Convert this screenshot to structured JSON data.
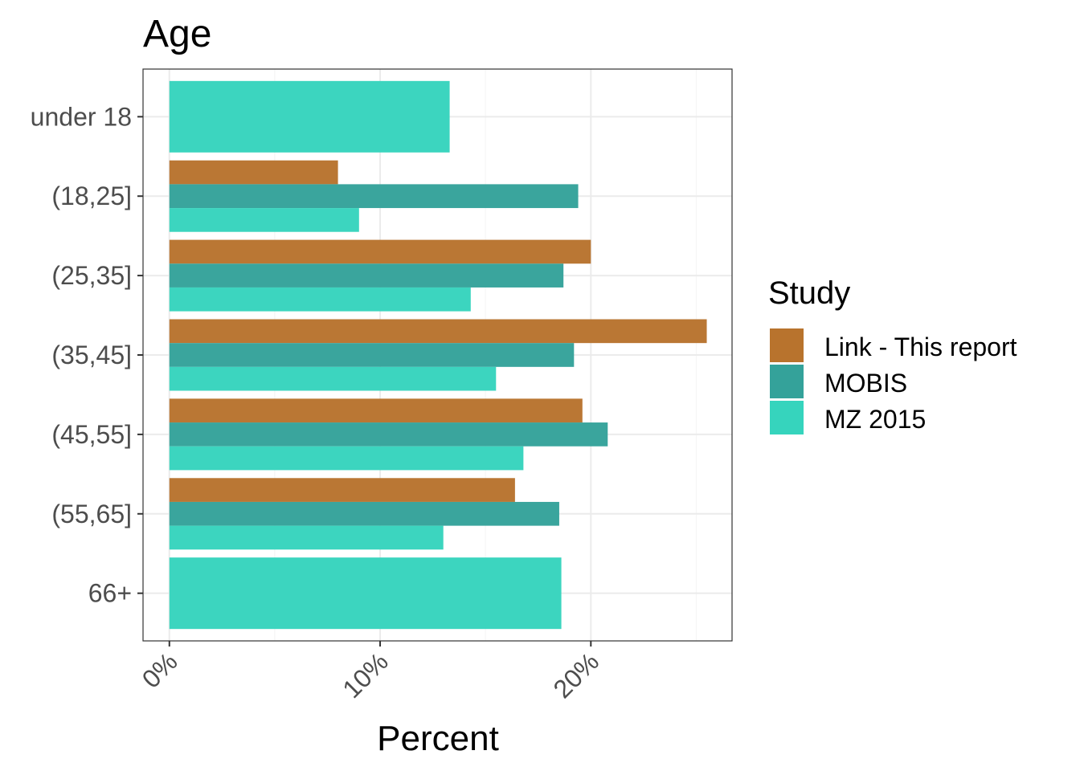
{
  "chart_data": {
    "type": "bar",
    "orientation": "horizontal",
    "title": "Age",
    "xlabel": "Percent",
    "ylabel": "",
    "xlim": [
      -1.25,
      26.7
    ],
    "x_ticks": [
      0,
      10,
      20
    ],
    "x_tick_labels": [
      "0%",
      "10%",
      "20%"
    ],
    "categories": [
      "under 18",
      "(18,25]",
      "(25,35]",
      "(35,45]",
      "(45,55]",
      "(55,65]",
      "66+"
    ],
    "series": [
      {
        "name": "Link - This report",
        "color": "#b8732d",
        "values": [
          null,
          8.0,
          20.0,
          25.5,
          19.6,
          16.4,
          null
        ]
      },
      {
        "name": "MOBIS",
        "color": "#34a29a",
        "values": [
          null,
          19.4,
          18.7,
          19.2,
          20.8,
          18.5,
          null
        ]
      },
      {
        "name": "MZ 2015",
        "color": "#36d4bd",
        "values": [
          13.3,
          9.0,
          14.3,
          15.5,
          16.8,
          13.0,
          18.6
        ]
      }
    ],
    "legend": {
      "title": "Study",
      "position": "right"
    },
    "grid": true
  }
}
